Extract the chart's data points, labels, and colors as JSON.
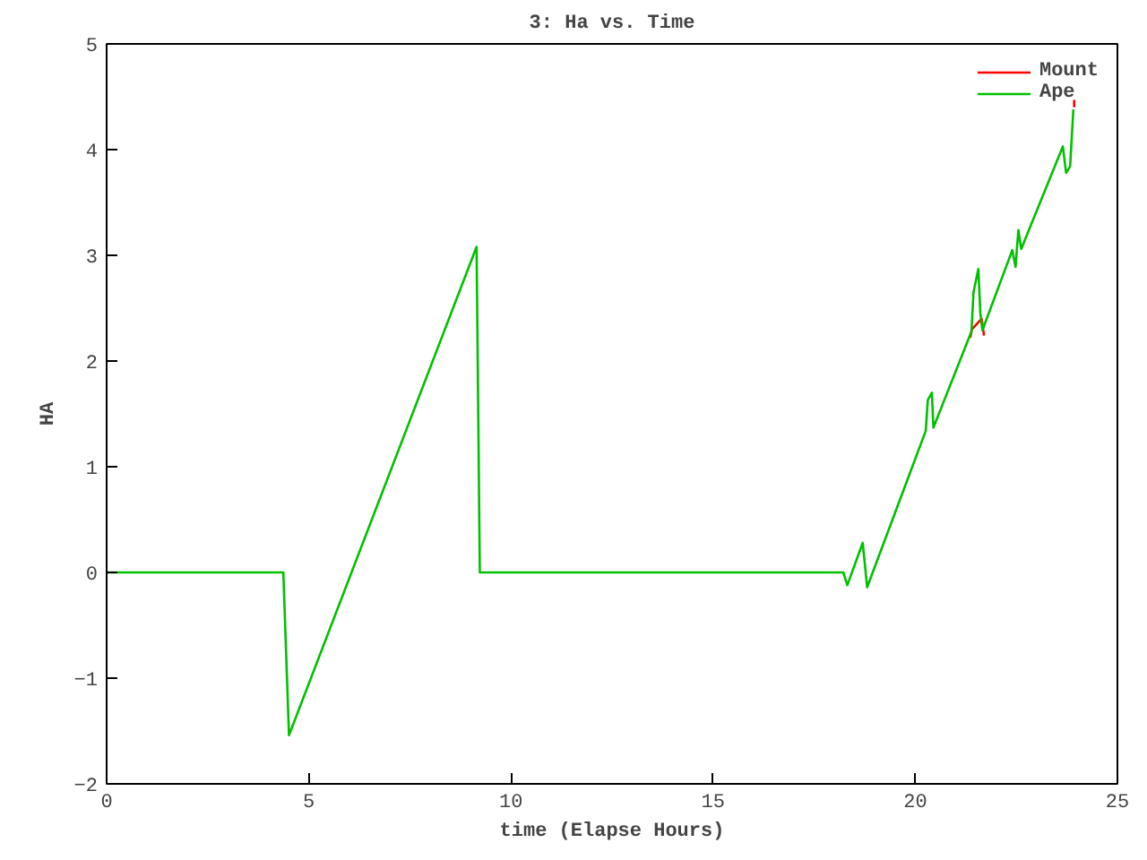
{
  "chart_data": {
    "type": "line",
    "title": "3: Ha vs. Time",
    "xlabel": "time (Elapse Hours)",
    "ylabel": "HA",
    "x": [
      0,
      4.37,
      4.51,
      9.15,
      9.23,
      18.22,
      18.32,
      18.7,
      18.81,
      20.26,
      20.31,
      20.41,
      20.45,
      21.39,
      21.44,
      21.56,
      21.61,
      21.66,
      22.4,
      22.48,
      22.55,
      22.62,
      23.65,
      23.73,
      23.83,
      23.91
    ],
    "series": [
      {
        "name": "Mount",
        "color": "#ff0000",
        "x": [
          21.36,
          21.4,
          21.64,
          21.7,
          21.72,
          23.93,
          23.93
        ],
        "values": [
          2.22,
          2.3,
          2.4,
          2.24,
          null,
          4.4,
          4.47
        ]
      },
      {
        "name": "Ape",
        "color": "#00c000",
        "values": [
          0,
          0,
          -1.54,
          3.08,
          0,
          0,
          -0.12,
          0.28,
          -0.14,
          1.34,
          1.63,
          1.7,
          1.37,
          2.28,
          2.65,
          2.87,
          2.45,
          2.29,
          3.05,
          2.89,
          3.24,
          3.06,
          4.03,
          3.78,
          3.84,
          4.38
        ]
      }
    ],
    "xlim": [
      0,
      25
    ],
    "xticks": [
      0,
      5,
      10,
      15,
      20,
      25
    ],
    "ylim": [
      -2,
      5
    ],
    "yticks": [
      -2,
      -1,
      0,
      1,
      2,
      3,
      4,
      5
    ],
    "grid": false,
    "legend": "top right",
    "line_style": "solid"
  }
}
